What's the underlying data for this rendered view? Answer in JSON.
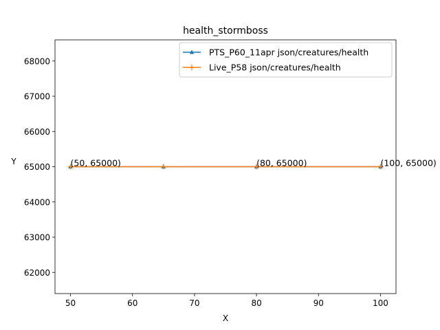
{
  "chart_data": {
    "type": "line",
    "title": "health_stormboss",
    "xlabel": "X",
    "ylabel": "Y",
    "xlim": [
      47.5,
      102.5
    ],
    "ylim": [
      61400,
      68600
    ],
    "xticks": [
      50,
      60,
      70,
      80,
      90,
      100
    ],
    "yticks": [
      62000,
      63000,
      64000,
      65000,
      66000,
      67000,
      68000
    ],
    "xtick_labels": [
      "50",
      "60",
      "70",
      "80",
      "90",
      "100"
    ],
    "ytick_labels": [
      "62000",
      "63000",
      "64000",
      "65000",
      "66000",
      "67000",
      "68000"
    ],
    "grid": false,
    "legend_position": "top-right",
    "series": [
      {
        "name": "PTS_P60_11apr json/creatures/health",
        "color": "#1f77b4",
        "marker": "triangle",
        "x": [
          50,
          65,
          80,
          100
        ],
        "y": [
          65000,
          65000,
          65000,
          65000
        ]
      },
      {
        "name": "Live_P58 json/creatures/health",
        "color": "#ff7f0e",
        "marker": "plus",
        "x": [
          50,
          65,
          80,
          100
        ],
        "y": [
          65000,
          65000,
          65000,
          65000
        ]
      }
    ],
    "annotations": [
      {
        "x": 50,
        "y": 65000,
        "text": "(50, 65000)"
      },
      {
        "x": 80,
        "y": 65000,
        "text": "(80, 65000)"
      },
      {
        "x": 100,
        "y": 65000,
        "text": "(100, 65000)"
      }
    ]
  }
}
